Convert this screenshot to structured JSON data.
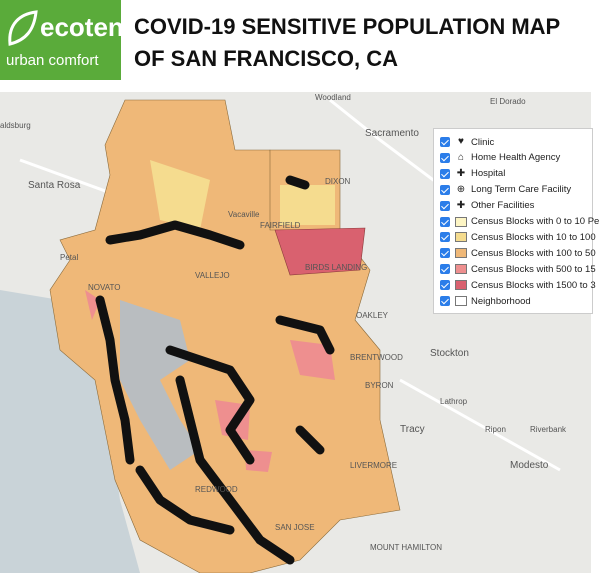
{
  "header": {
    "logo": {
      "brand": "ecoten",
      "tagline": "urban comfort"
    },
    "title_lines": [
      "COVID-19 SENSITIVE POPULATION MAP",
      "OF SAN FRANCISCO, CA"
    ]
  },
  "legend": {
    "items": [
      {
        "label": "Clinic"
      },
      {
        "label": "Home Health Agency"
      },
      {
        "label": "Hospital"
      },
      {
        "label": "Long Term Care Facility"
      },
      {
        "label": "Other Facilities"
      },
      {
        "label": "Census Blocks with 0 to 10 Pe",
        "color": "#fdf5c4"
      },
      {
        "label": "Census Blocks with 10 to 100",
        "color": "#f5dc8f"
      },
      {
        "label": "Census Blocks with 100 to 50",
        "color": "#efb878"
      },
      {
        "label": "Census Blocks with 500 to 15",
        "color": "#ee8f8f"
      },
      {
        "label": "Census Blocks with 1500 to 3",
        "color": "#d9616f"
      },
      {
        "label": "Neighborhood",
        "color": "#ffffff"
      }
    ]
  },
  "map": {
    "places": [
      "Woodland",
      "El Dorado",
      "Sacramento",
      "aldsburg",
      "Santa Rosa",
      "DIXON",
      "Vacaville",
      "FAIRFIELD",
      "Petal",
      "NOVATO",
      "VALLEJO",
      "BIRDS LANDING",
      "OAKLEY",
      "BRENTWOOD",
      "Stockton",
      "BYRON",
      "Lathrop",
      "Tracy",
      "Ripon",
      "Riverbank",
      "Modesto",
      "LIVERMORE",
      "REDWOOD",
      "SAN JOSE",
      "MOUNT HAMILTON"
    ]
  }
}
